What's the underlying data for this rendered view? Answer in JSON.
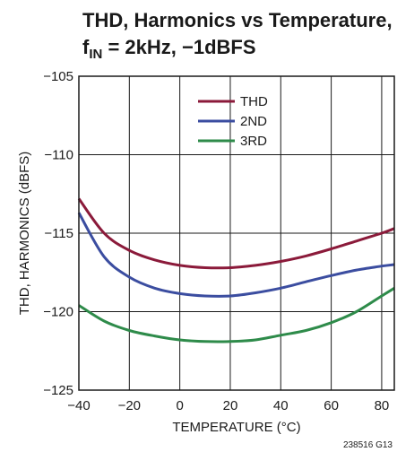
{
  "chart_data": {
    "type": "line",
    "title_main": "THD, Harmonics vs Temperature,",
    "title_sub_prefix": "f",
    "title_sub_subscript": "IN",
    "title_sub_suffix": " = 2kHz, −1dBFS",
    "xlabel": "TEMPERATURE (°C)",
    "ylabel": "THD, HARMONICS (dBFS)",
    "xlim": [
      -40,
      85
    ],
    "ylim": [
      -125,
      -105
    ],
    "x_ticks": [
      -40,
      -20,
      0,
      20,
      40,
      60,
      80
    ],
    "x_tick_labels": [
      "−40",
      "−20",
      "0",
      "20",
      "40",
      "60",
      "80"
    ],
    "y_ticks": [
      -105,
      -110,
      -115,
      -120,
      -125
    ],
    "y_tick_labels": [
      "−105",
      "−110",
      "−115",
      "−120",
      "−125"
    ],
    "grid": true,
    "legend_position": "top-center",
    "footnote": "238516 G13",
    "series": [
      {
        "name": "THD",
        "color": "#8b1a3a",
        "x": [
          -40,
          -30,
          -20,
          -10,
          0,
          10,
          20,
          30,
          40,
          50,
          60,
          70,
          80,
          85
        ],
        "y": [
          -112.8,
          -115.0,
          -116.1,
          -116.7,
          -117.05,
          -117.2,
          -117.2,
          -117.05,
          -116.8,
          -116.45,
          -116.0,
          -115.5,
          -115.0,
          -114.7
        ]
      },
      {
        "name": "2ND",
        "color": "#3b4da0",
        "x": [
          -40,
          -30,
          -20,
          -10,
          0,
          10,
          20,
          30,
          40,
          50,
          60,
          70,
          80,
          85
        ],
        "y": [
          -113.7,
          -116.5,
          -117.8,
          -118.5,
          -118.85,
          -119.0,
          -119.0,
          -118.8,
          -118.5,
          -118.1,
          -117.7,
          -117.35,
          -117.1,
          -117.0
        ]
      },
      {
        "name": "3RD",
        "color": "#2e8b4a",
        "x": [
          -40,
          -30,
          -20,
          -10,
          0,
          10,
          20,
          30,
          40,
          50,
          60,
          70,
          80,
          85
        ],
        "y": [
          -119.6,
          -120.6,
          -121.2,
          -121.55,
          -121.8,
          -121.9,
          -121.9,
          -121.8,
          -121.5,
          -121.2,
          -120.7,
          -120.0,
          -119.0,
          -118.5
        ]
      }
    ]
  }
}
